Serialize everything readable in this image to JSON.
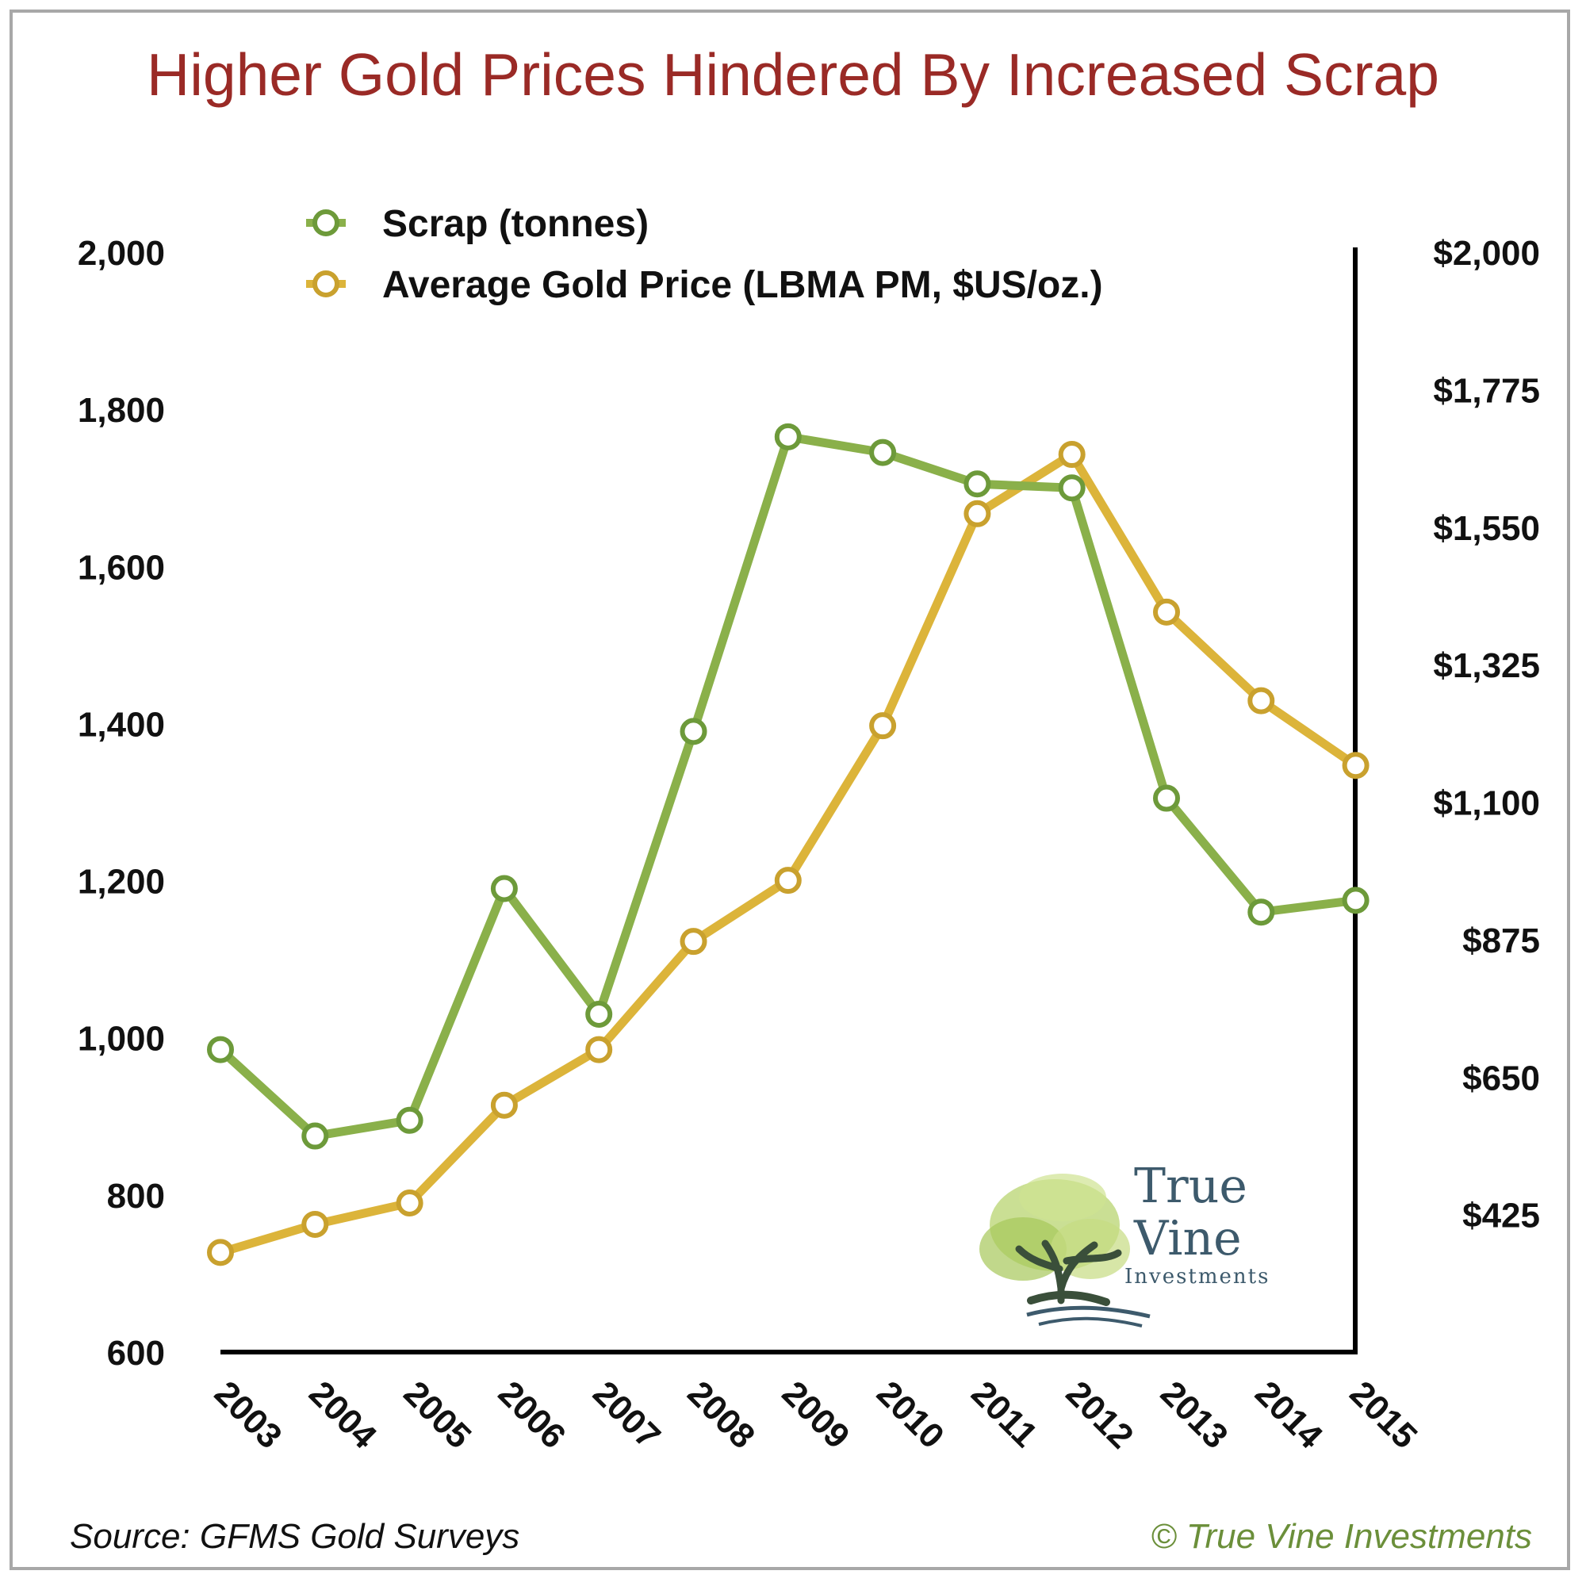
{
  "chart_data": {
    "type": "line",
    "title": "Higher Gold Prices Hindered By Increased Scrap",
    "categories": [
      "2003",
      "2004",
      "2005",
      "2006",
      "2007",
      "2008",
      "2009",
      "2010",
      "2011",
      "2012",
      "2013",
      "2014",
      "2015"
    ],
    "series": [
      {
        "name": "Scrap (tonnes)",
        "axis": "left",
        "color": "#8ab04a",
        "values": [
          985,
          875,
          895,
          1190,
          1030,
          1390,
          1765,
          1745,
          1705,
          1700,
          1305,
          1160,
          1175
        ]
      },
      {
        "name": "Average Gold Price (LBMA PM, $US/oz.)",
        "axis": "right",
        "color": "#dcb43a",
        "values": [
          363,
          409,
          444,
          604,
          695,
          872,
          972,
          1225,
          1572,
          1669,
          1411,
          1266,
          1160
        ]
      }
    ],
    "left_axis": {
      "min": 600,
      "max": 2000,
      "ticks": [
        "2,000",
        "1,800",
        "1,600",
        "1,400",
        "1,200",
        "1,000",
        "800",
        "600"
      ],
      "tick_values": [
        2000,
        1800,
        1600,
        1400,
        1200,
        1000,
        800,
        600
      ]
    },
    "right_axis": {
      "min": 200,
      "max": 2000,
      "ticks": [
        "$2,000",
        "$1,775",
        "$1,550",
        "$1,325",
        "$1,100",
        "$875",
        "$650",
        "$425"
      ],
      "tick_values": [
        2000,
        1775,
        1550,
        1325,
        1100,
        875,
        650,
        425
      ]
    },
    "legend_placement": "top-left",
    "grid": false
  },
  "footer": {
    "source": "Source: GFMS Gold Surveys",
    "copyright": "© True Vine Investments"
  },
  "logo": {
    "line1": "True",
    "line2": "Vine",
    "line3": "Investments"
  },
  "colors": {
    "title": "#9a2a26",
    "copyright": "#6b8f3a",
    "scrap": "#8ab04a",
    "price": "#dcb43a"
  }
}
